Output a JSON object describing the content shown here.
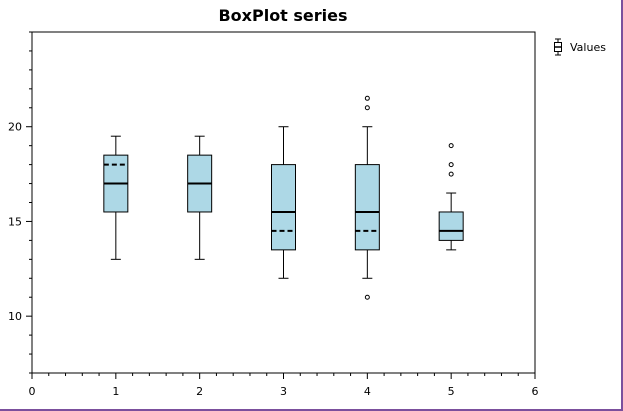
{
  "chart_data": {
    "type": "boxplot",
    "title": "BoxPlot series",
    "legend": {
      "entries": [
        "Values"
      ],
      "placement": "top-right"
    },
    "xlim": [
      0,
      6
    ],
    "ylim": [
      7,
      25
    ],
    "x_ticks": [
      0,
      1,
      2,
      3,
      4,
      5,
      6
    ],
    "y_ticks": [
      10,
      15,
      20
    ],
    "box_color": "#add8e6",
    "series": [
      {
        "name": "Values",
        "boxes": [
          {
            "x": 1,
            "whisker_low": 13,
            "q1": 15.5,
            "median": 17,
            "mean": 18,
            "q3": 18.5,
            "whisker_high": 19.5,
            "outliers": []
          },
          {
            "x": 2,
            "whisker_low": 13,
            "q1": 15.5,
            "median": 17,
            "mean": 17,
            "q3": 18.5,
            "whisker_high": 19.5,
            "outliers": []
          },
          {
            "x": 3,
            "whisker_low": 12,
            "q1": 13.5,
            "median": 15.5,
            "mean": 14.5,
            "q3": 18,
            "whisker_high": 20,
            "outliers": []
          },
          {
            "x": 4,
            "whisker_low": 12,
            "q1": 13.5,
            "median": 15.5,
            "mean": 14.5,
            "q3": 18,
            "whisker_high": 20,
            "outliers": [
              11,
              21,
              21.5
            ]
          },
          {
            "x": 5,
            "whisker_low": 13.5,
            "q1": 14,
            "median": 14.5,
            "mean": 14.5,
            "q3": 15.5,
            "whisker_high": 16.5,
            "outliers": [
              17.5,
              18,
              19
            ]
          }
        ]
      }
    ]
  }
}
